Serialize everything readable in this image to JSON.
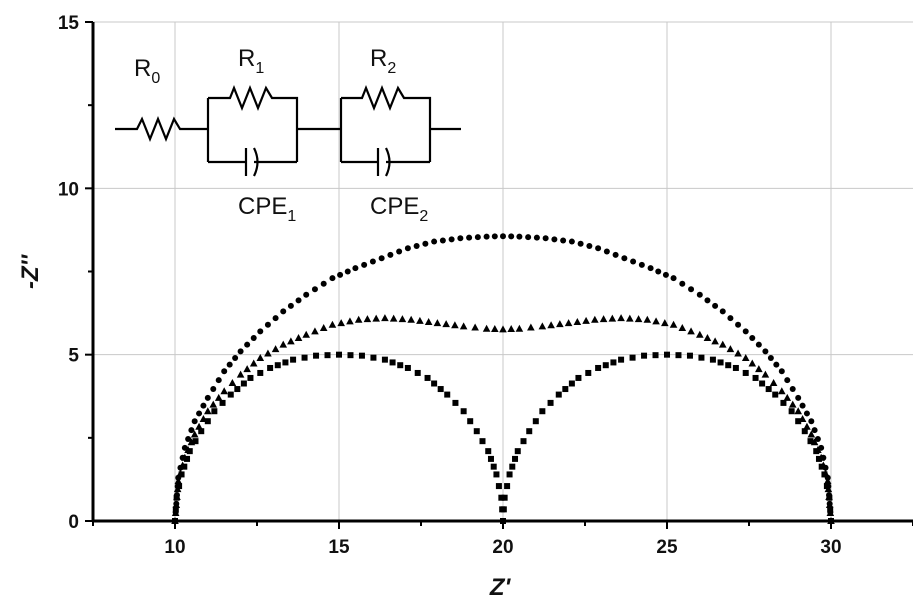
{
  "chart_data": {
    "type": "scatter",
    "xlabel": "Z'",
    "ylabel": "-Z''",
    "xlim": [
      7.5,
      32.5
    ],
    "ylim": [
      0,
      15
    ],
    "x_ticks": [
      10,
      15,
      20,
      25,
      30
    ],
    "y_ticks": [
      0,
      5,
      10,
      15
    ],
    "grid": true,
    "marker_color": "#000000",
    "series": [
      {
        "marker": "circle",
        "description_points": "single semicircle from 10 to 30",
        "x": [
          10.0,
          10.1,
          10.3,
          10.6,
          11.0,
          11.5,
          12.0,
          12.6,
          13.3,
          14.0,
          14.8,
          15.5,
          16.3,
          17.1,
          17.9,
          18.7,
          19.5,
          20.0,
          20.5,
          21.3,
          22.1,
          22.9,
          23.7,
          24.5,
          25.2,
          26.0,
          26.7,
          27.4,
          28.0,
          28.5,
          29.0,
          29.4,
          29.7,
          29.9,
          30.0
        ],
        "y": [
          0.0,
          1.3,
          2.2,
          3.0,
          3.7,
          4.5,
          5.1,
          5.7,
          6.3,
          6.8,
          7.3,
          7.6,
          7.9,
          8.2,
          8.4,
          8.5,
          8.55,
          8.56,
          8.55,
          8.5,
          8.4,
          8.2,
          7.9,
          7.6,
          7.3,
          6.8,
          6.3,
          5.7,
          5.1,
          4.5,
          3.7,
          3.0,
          2.2,
          1.3,
          0.0
        ]
      },
      {
        "marker": "triangle",
        "description_points": "merged double arc from 10 to 30",
        "x": [
          10.0,
          10.1,
          10.3,
          10.6,
          11.0,
          11.5,
          12.0,
          12.6,
          13.3,
          14.0,
          14.8,
          15.6,
          16.4,
          17.2,
          18.0,
          18.8,
          19.5,
          20.0,
          20.5,
          21.2,
          22.0,
          22.8,
          23.6,
          24.4,
          25.2,
          26.0,
          26.7,
          27.4,
          28.0,
          28.5,
          29.0,
          29.4,
          29.7,
          29.9,
          30.0
        ],
        "y": [
          0.0,
          1.2,
          1.9,
          2.6,
          3.3,
          3.9,
          4.4,
          4.9,
          5.3,
          5.6,
          5.9,
          6.05,
          6.1,
          6.05,
          5.95,
          5.85,
          5.78,
          5.76,
          5.78,
          5.85,
          5.95,
          6.05,
          6.1,
          6.05,
          5.9,
          5.6,
          5.3,
          4.9,
          4.4,
          3.9,
          3.3,
          2.6,
          1.9,
          1.2,
          0.0
        ]
      },
      {
        "marker": "square",
        "description_points": "two semicircles 10-20 and 20-30",
        "x": [
          10.0,
          10.05,
          10.2,
          10.45,
          10.8,
          11.2,
          11.7,
          12.3,
          12.9,
          13.6,
          14.3,
          15.0,
          15.7,
          16.4,
          17.1,
          17.7,
          18.3,
          18.8,
          19.2,
          19.55,
          19.8,
          19.95,
          20.0,
          20.05,
          20.2,
          20.45,
          20.8,
          21.2,
          21.7,
          22.3,
          22.9,
          23.6,
          24.3,
          25.0,
          25.7,
          26.4,
          27.1,
          27.7,
          28.3,
          28.8,
          29.2,
          29.55,
          29.8,
          29.95,
          30.0
        ],
        "y": [
          0.0,
          0.7,
          1.4,
          2.1,
          2.7,
          3.3,
          3.8,
          4.3,
          4.6,
          4.85,
          4.97,
          5.0,
          4.97,
          4.85,
          4.6,
          4.3,
          3.8,
          3.3,
          2.7,
          2.1,
          1.4,
          0.7,
          0.0,
          0.7,
          1.4,
          2.1,
          2.7,
          3.3,
          3.8,
          4.3,
          4.6,
          4.85,
          4.97,
          5.0,
          4.97,
          4.85,
          4.6,
          4.3,
          3.8,
          3.3,
          2.7,
          2.1,
          1.4,
          0.7,
          0.0
        ]
      }
    ]
  },
  "circuit": {
    "r0": "R",
    "r0_sub": "0",
    "r1": "R",
    "r1_sub": "1",
    "r2": "R",
    "r2_sub": "2",
    "cpe1": "CPE",
    "cpe1_sub": "1",
    "cpe2": "CPE",
    "cpe2_sub": "2"
  }
}
